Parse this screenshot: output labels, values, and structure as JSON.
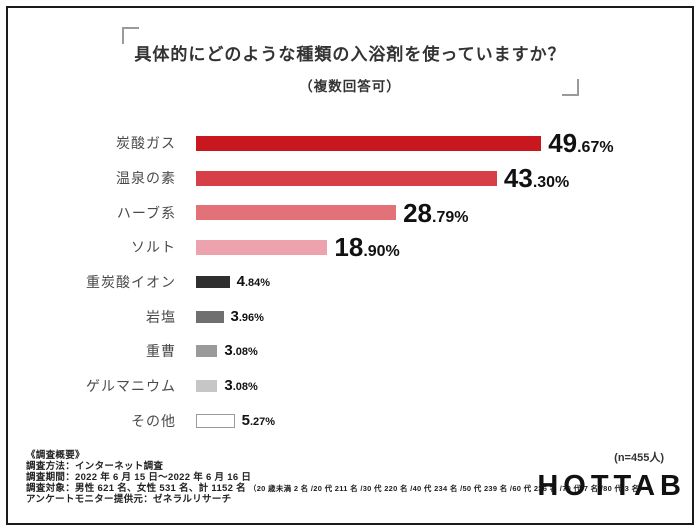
{
  "header": {
    "title": "具体的にどのような種類の入浴剤を使っていますか？",
    "subtitle": "（複数回答可）"
  },
  "chart_data": {
    "type": "bar",
    "orientation": "horizontal",
    "title": "具体的にどのような種類の入浴剤を使っていますか？",
    "subtitle": "（複数回答可）",
    "xlim": [
      0,
      55
    ],
    "grid": false,
    "legend": "none",
    "sample_note": "(n=455人)",
    "items": [
      {
        "label": "炭酸ガス",
        "value": 49.67,
        "display": "49.67%",
        "color": "#c8171e",
        "emphasis": true
      },
      {
        "label": "温泉の素",
        "value": 43.3,
        "display": "43.30%",
        "color": "#d63f48",
        "emphasis": true
      },
      {
        "label": "ハーブ系",
        "value": 28.79,
        "display": "28.79%",
        "color": "#e2717a",
        "emphasis": true
      },
      {
        "label": "ソルト",
        "value": 18.9,
        "display": "18.90%",
        "color": "#eda3ad",
        "emphasis": true
      },
      {
        "label": "重炭酸イオン",
        "value": 4.84,
        "display": "4.84%",
        "color": "#2f2f2f",
        "emphasis": false
      },
      {
        "label": "岩塩",
        "value": 3.96,
        "display": "3.96%",
        "color": "#6f6f6f",
        "emphasis": false
      },
      {
        "label": "重曹",
        "value": 3.08,
        "display": "3.08%",
        "color": "#9a9a9a",
        "emphasis": false
      },
      {
        "label": "ゲルマニウム",
        "value": 3.08,
        "display": "3.08%",
        "color": "#c6c6c6",
        "emphasis": false
      },
      {
        "label": "その他",
        "value": 5.27,
        "display": "5.27%",
        "color": "#ffffff",
        "emphasis": false,
        "border": "#9a9a9a"
      }
    ]
  },
  "footer": {
    "survey_heading": "《調査概要》",
    "method_line": "調査方法：インターネット調査",
    "period_line": "調査期間：2022 年 6 月 15 日～2022 年 6 月 16 日",
    "subjects_main": "調査対象：男性 621 名、女性 531 名、計 1152 名",
    "subjects_detail": "（20 歳未満 2 名 /20 代 211 名 /30 代 220 名 /40 代 234 名 /50 代 239 名 /60 代 236 名 /70 代 7 名 /80 代 3 名）",
    "provider_line": "アンケートモニター提供元：ゼネラルリサーチ",
    "sample_note": "(n=455人)",
    "logo": "HOTTAB"
  }
}
